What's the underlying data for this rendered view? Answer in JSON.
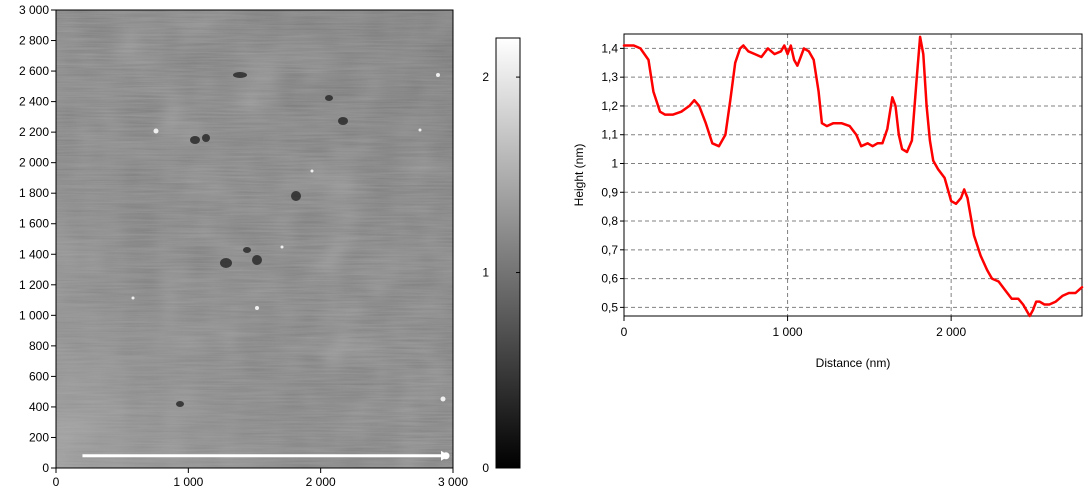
{
  "afm_image": {
    "colors": {
      "frame": "#000000",
      "scan_arrow": "#ffffff",
      "background": "#ffffff"
    },
    "x_ticks": [
      {
        "v": 0,
        "label": "0"
      },
      {
        "v": 1000,
        "label": "1 000"
      },
      {
        "v": 2000,
        "label": "2 000"
      },
      {
        "v": 3000,
        "label": "3 000"
      }
    ],
    "y_ticks": [
      {
        "v": 0,
        "label": "0"
      },
      {
        "v": 200,
        "label": "200"
      },
      {
        "v": 400,
        "label": "400"
      },
      {
        "v": 600,
        "label": "600"
      },
      {
        "v": 800,
        "label": "800"
      },
      {
        "v": 1000,
        "label": "1 000"
      },
      {
        "v": 1200,
        "label": "1 200"
      },
      {
        "v": 1400,
        "label": "1 400"
      },
      {
        "v": 1600,
        "label": "1 600"
      },
      {
        "v": 1800,
        "label": "1 800"
      },
      {
        "v": 2000,
        "label": "2 000"
      },
      {
        "v": 2200,
        "label": "2 200"
      },
      {
        "v": 2400,
        "label": "2 400"
      },
      {
        "v": 2600,
        "label": "2 600"
      },
      {
        "v": 2800,
        "label": "2 800"
      },
      {
        "v": 3000,
        "label": "3 000"
      }
    ],
    "xlim": [
      0,
      3000
    ],
    "ylim": [
      0,
      3000
    ],
    "scan_line": {
      "x_start": 200,
      "x_end": 3000,
      "y": 80
    }
  },
  "colorbar": {
    "range": [
      0,
      2.2
    ],
    "ticks": [
      {
        "v": 0,
        "label": "0"
      },
      {
        "v": 1,
        "label": "1"
      },
      {
        "v": 2,
        "label": "2"
      }
    ],
    "colors": {
      "low": "#000000",
      "high": "#ffffff"
    }
  },
  "chart_data": {
    "type": "line",
    "title": "",
    "xlabel": "Distance (nm)",
    "ylabel": "Height (nm)",
    "xlim": [
      0,
      2800
    ],
    "ylim": [
      0.47,
      1.45
    ],
    "grid": true,
    "series_color": "#ff0000",
    "x_ticks": [
      {
        "v": 0,
        "label": "0"
      },
      {
        "v": 1000,
        "label": "1 000"
      },
      {
        "v": 2000,
        "label": "2 000"
      }
    ],
    "y_ticks": [
      {
        "v": 0.5,
        "label": "0,5"
      },
      {
        "v": 0.6,
        "label": "0,6"
      },
      {
        "v": 0.7,
        "label": "0,7"
      },
      {
        "v": 0.8,
        "label": "0,8"
      },
      {
        "v": 0.9,
        "label": "0,9"
      },
      {
        "v": 1.0,
        "label": "1"
      },
      {
        "v": 1.1,
        "label": "1,1"
      },
      {
        "v": 1.2,
        "label": "1,2"
      },
      {
        "v": 1.3,
        "label": "1,3"
      },
      {
        "v": 1.4,
        "label": "1,4"
      }
    ],
    "series": [
      {
        "x": [
          0,
          60,
          100,
          150,
          180,
          220,
          250,
          300,
          350,
          400,
          430,
          460,
          500,
          540,
          580,
          620,
          650,
          680,
          710,
          730,
          760,
          800,
          840,
          880,
          920,
          960,
          980,
          1000,
          1020,
          1040,
          1060,
          1080,
          1100,
          1130,
          1160,
          1190,
          1210,
          1240,
          1280,
          1330,
          1380,
          1420,
          1450,
          1490,
          1520,
          1550,
          1580,
          1610,
          1640,
          1660,
          1680,
          1700,
          1730,
          1760,
          1790,
          1810,
          1830,
          1850,
          1870,
          1890,
          1920,
          1960,
          2000,
          2030,
          2060,
          2080,
          2100,
          2140,
          2180,
          2220,
          2250,
          2290,
          2330,
          2370,
          2410,
          2440,
          2460,
          2480,
          2500,
          2520,
          2540,
          2570,
          2600,
          2640,
          2680,
          2720,
          2760,
          2800
        ],
        "y": [
          1.41,
          1.41,
          1.4,
          1.36,
          1.25,
          1.18,
          1.17,
          1.17,
          1.18,
          1.2,
          1.22,
          1.2,
          1.14,
          1.07,
          1.06,
          1.1,
          1.22,
          1.35,
          1.4,
          1.41,
          1.39,
          1.38,
          1.37,
          1.4,
          1.38,
          1.39,
          1.41,
          1.38,
          1.41,
          1.36,
          1.34,
          1.37,
          1.4,
          1.39,
          1.36,
          1.25,
          1.14,
          1.13,
          1.14,
          1.14,
          1.13,
          1.1,
          1.06,
          1.07,
          1.06,
          1.07,
          1.07,
          1.12,
          1.23,
          1.2,
          1.1,
          1.05,
          1.04,
          1.08,
          1.3,
          1.44,
          1.38,
          1.2,
          1.08,
          1.01,
          0.98,
          0.95,
          0.87,
          0.86,
          0.88,
          0.91,
          0.88,
          0.75,
          0.68,
          0.63,
          0.6,
          0.59,
          0.56,
          0.53,
          0.53,
          0.51,
          0.49,
          0.47,
          0.49,
          0.52,
          0.52,
          0.51,
          0.51,
          0.52,
          0.54,
          0.55,
          0.55,
          0.57
        ]
      }
    ]
  }
}
